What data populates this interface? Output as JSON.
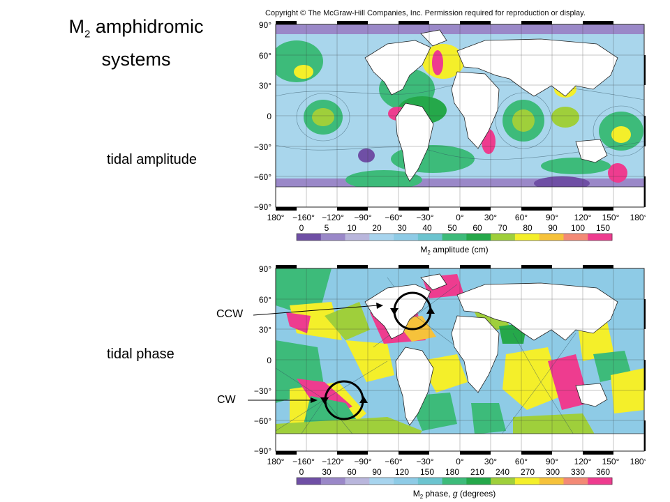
{
  "slide": {
    "title_main": "M",
    "title_sub": "2",
    "title_rest": " amphidromic",
    "title_line2": "systems"
  },
  "copyright": "Copyright © The McGraw-Hill Companies, Inc. Permission required for reproduction or display.",
  "top_panel": {
    "label": "tidal amplitude",
    "lat_ticks": [
      "90°",
      "60°",
      "30°",
      "0",
      "−30°",
      "−60°",
      "−90°"
    ],
    "lon_ticks": [
      "180°",
      "−160°",
      "−120°",
      "−90°",
      "−60°",
      "−30°",
      "0°",
      "30°",
      "60°",
      "90°",
      "120°",
      "150°",
      "180°"
    ],
    "colorbar_ticks": [
      "0",
      "5",
      "10",
      "20",
      "30",
      "40",
      "50",
      "60",
      "70",
      "80",
      "90",
      "100",
      "150"
    ],
    "colorbar_title_pre": "M",
    "colorbar_title_sub": "2",
    "colorbar_title_post": " amplitude (cm)",
    "colorbar_colors": [
      "#6f4fa5",
      "#9a88c8",
      "#b9b6dc",
      "#a7d4ee",
      "#8ecbe6",
      "#6cc4cf",
      "#3dbb7a",
      "#25a84a",
      "#9fcf3b",
      "#f4ef2a",
      "#f6c23b",
      "#f38a76",
      "#ee3c8f"
    ]
  },
  "bottom_panel": {
    "label": "tidal phase",
    "lat_ticks": [
      "90°",
      "60°",
      "30°",
      "0",
      "−30°",
      "−60°",
      "−90°"
    ],
    "lon_ticks": [
      "180°",
      "−160°",
      "−120°",
      "−90°",
      "−60°",
      "−30°",
      "0°",
      "30°",
      "60°",
      "90°",
      "120°",
      "150°",
      "180°"
    ],
    "colorbar_ticks": [
      "0",
      "30",
      "60",
      "90",
      "120",
      "150",
      "180",
      "210",
      "240",
      "270",
      "300",
      "330",
      "360"
    ],
    "colorbar_title_pre": "M",
    "colorbar_title_sub": "2",
    "colorbar_title_post": " phase, ",
    "colorbar_title_g": "g",
    "colorbar_title_end": " (degrees)",
    "colorbar_colors": [
      "#6f4fa5",
      "#9a88c8",
      "#b9b6dc",
      "#a7d4ee",
      "#8ecbe6",
      "#6cc4cf",
      "#3dbb7a",
      "#25a84a",
      "#9fcf3b",
      "#f4ef2a",
      "#f6c23b",
      "#f38a76",
      "#ee3c8f"
    ],
    "annotations": {
      "ccw": "CCW",
      "cw": "CW"
    }
  }
}
